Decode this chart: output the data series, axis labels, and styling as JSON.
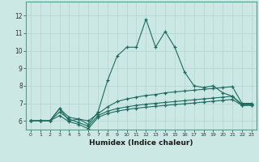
{
  "xlabel": "Humidex (Indice chaleur)",
  "ylabel": "",
  "background_color": "#cce8e5",
  "grid_color": "#b8d8d5",
  "line_color": "#1e6b5e",
  "xlim": [
    -0.5,
    23.5
  ],
  "ylim": [
    5.5,
    12.8
  ],
  "xticks": [
    0,
    1,
    2,
    3,
    4,
    5,
    6,
    7,
    8,
    9,
    10,
    11,
    12,
    13,
    14,
    15,
    16,
    17,
    18,
    19,
    20,
    21,
    22,
    23
  ],
  "yticks": [
    6,
    7,
    8,
    9,
    10,
    11,
    12
  ],
  "series": [
    {
      "y": [
        6.0,
        6.0,
        6.0,
        6.7,
        6.0,
        6.1,
        5.8,
        6.5,
        8.3,
        9.7,
        10.2,
        10.2,
        11.8,
        10.2,
        11.1,
        10.2,
        8.8,
        8.0,
        7.9,
        8.0,
        7.6,
        7.4,
        6.9,
        6.9
      ]
    },
    {
      "y": [
        6.0,
        6.0,
        6.0,
        6.7,
        6.2,
        6.1,
        6.0,
        6.4,
        6.8,
        7.1,
        7.25,
        7.35,
        7.45,
        7.5,
        7.6,
        7.65,
        7.7,
        7.75,
        7.8,
        7.85,
        7.9,
        7.95,
        7.0,
        7.0
      ]
    },
    {
      "y": [
        6.0,
        6.0,
        6.0,
        6.5,
        6.1,
        5.9,
        5.7,
        6.3,
        6.55,
        6.7,
        6.8,
        6.88,
        6.95,
        7.0,
        7.05,
        7.1,
        7.15,
        7.2,
        7.25,
        7.3,
        7.35,
        7.4,
        6.95,
        6.95
      ]
    },
    {
      "y": [
        6.0,
        6.0,
        6.0,
        6.3,
        5.95,
        5.8,
        5.55,
        6.2,
        6.42,
        6.55,
        6.65,
        6.72,
        6.78,
        6.83,
        6.88,
        6.93,
        6.97,
        7.02,
        7.07,
        7.12,
        7.17,
        7.22,
        6.88,
        6.88
      ]
    }
  ]
}
